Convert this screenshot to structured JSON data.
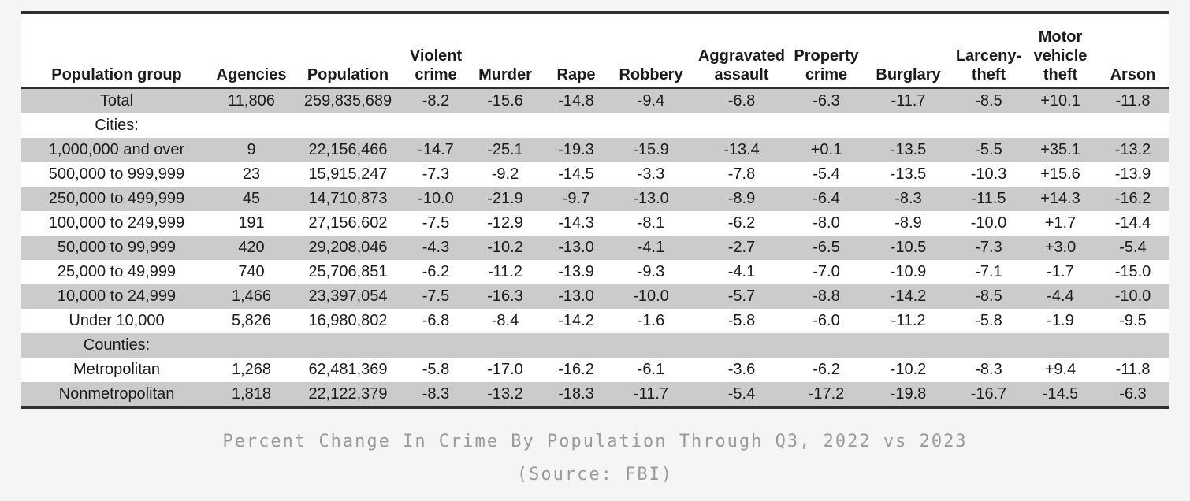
{
  "chart_data": {
    "type": "table",
    "title": "Percent Change In Crime By Population Through Q3, 2022 vs 2023",
    "source": "(Source: FBI)",
    "columns": [
      "Population group",
      "Agencies",
      "Population",
      "Violent\ncrime",
      "Murder",
      "Rape",
      "Robbery",
      "Aggravated\nassault",
      "Property\ncrime",
      "Burglary",
      "Larceny-\ntheft",
      "Motor\nvehicle\ntheft",
      "Arson"
    ],
    "rows": [
      [
        "Total",
        "11,806",
        "259,835,689",
        "-8.2",
        "-15.6",
        "-14.8",
        "-9.4",
        "-6.8",
        "-6.3",
        "-11.7",
        "-8.5",
        "+10.1",
        "-11.8"
      ],
      [
        "Cities:",
        "",
        "",
        "",
        "",
        "",
        "",
        "",
        "",
        "",
        "",
        "",
        ""
      ],
      [
        "1,000,000 and over",
        "9",
        "22,156,466",
        "-14.7",
        "-25.1",
        "-19.3",
        "-15.9",
        "-13.4",
        "+0.1",
        "-13.5",
        "-5.5",
        "+35.1",
        "-13.2"
      ],
      [
        "500,000 to 999,999",
        "23",
        "15,915,247",
        "-7.3",
        "-9.2",
        "-14.5",
        "-3.3",
        "-7.8",
        "-5.4",
        "-13.5",
        "-10.3",
        "+15.6",
        "-13.9"
      ],
      [
        "250,000 to 499,999",
        "45",
        "14,710,873",
        "-10.0",
        "-21.9",
        "-9.7",
        "-13.0",
        "-8.9",
        "-6.4",
        "-8.3",
        "-11.5",
        "+14.3",
        "-16.2"
      ],
      [
        "100,000 to 249,999",
        "191",
        "27,156,602",
        "-7.5",
        "-12.9",
        "-14.3",
        "-8.1",
        "-6.2",
        "-8.0",
        "-8.9",
        "-10.0",
        "+1.7",
        "-14.4"
      ],
      [
        "50,000 to 99,999",
        "420",
        "29,208,046",
        "-4.3",
        "-10.2",
        "-13.0",
        "-4.1",
        "-2.7",
        "-6.5",
        "-10.5",
        "-7.3",
        "+3.0",
        "-5.4"
      ],
      [
        "25,000 to 49,999",
        "740",
        "25,706,851",
        "-6.2",
        "-11.2",
        "-13.9",
        "-9.3",
        "-4.1",
        "-7.0",
        "-10.9",
        "-7.1",
        "-1.7",
        "-15.0"
      ],
      [
        "10,000 to 24,999",
        "1,466",
        "23,397,054",
        "-7.5",
        "-16.3",
        "-13.0",
        "-10.0",
        "-5.7",
        "-8.8",
        "-14.2",
        "-8.5",
        "-4.4",
        "-10.0"
      ],
      [
        "Under 10,000",
        "5,826",
        "16,980,802",
        "-6.8",
        "-8.4",
        "-14.2",
        "-1.6",
        "-5.8",
        "-6.0",
        "-11.2",
        "-5.8",
        "-1.9",
        "-9.5"
      ],
      [
        "Counties:",
        "",
        "",
        "",
        "",
        "",
        "",
        "",
        "",
        "",
        "",
        "",
        ""
      ],
      [
        "Metropolitan",
        "1,268",
        "62,481,369",
        "-5.8",
        "-17.0",
        "-16.2",
        "-6.1",
        "-3.6",
        "-6.2",
        "-10.2",
        "-8.3",
        "+9.4",
        "-11.8"
      ],
      [
        "Nonmetropolitan",
        "1,818",
        "22,122,379",
        "-8.3",
        "-13.2",
        "-18.3",
        "-11.7",
        "-5.4",
        "-17.2",
        "-19.8",
        "-16.7",
        "-14.5",
        "-6.3"
      ]
    ],
    "layout": {
      "stripe_pattern": "odd-rows-shaded",
      "grid": false
    }
  },
  "colors": {
    "page_background": "#f5f5f5",
    "table_background": "#ffffff",
    "row_stripe": "#cbcbcb",
    "border": "#2e2e2e",
    "text": "#1b1b1b",
    "caption_text": "#9a9a9a"
  }
}
